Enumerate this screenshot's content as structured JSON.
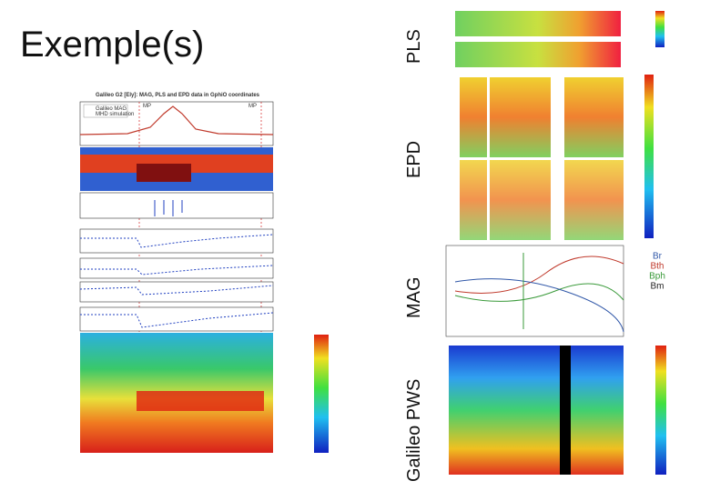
{
  "title": "Exemple(s)",
  "side_labels": [
    "PLS",
    "EPD",
    "MAG",
    "Galileo PWS"
  ],
  "left_figure": {
    "title": "Galileo G2 [Ely]: MAG, PLS and EPD data in GphiO coordinates",
    "legend": [
      "Galileo MAG",
      "MHD simulation"
    ],
    "markers": [
      "MP",
      "MP"
    ]
  },
  "mag_legend": [
    {
      "label": "Br",
      "color": "#3057a8"
    },
    {
      "label": "Bth",
      "color": "#c0392b"
    },
    {
      "label": "Bph",
      "color": "#3a9a3a"
    },
    {
      "label": "Bm",
      "color": "#222222"
    }
  ]
}
